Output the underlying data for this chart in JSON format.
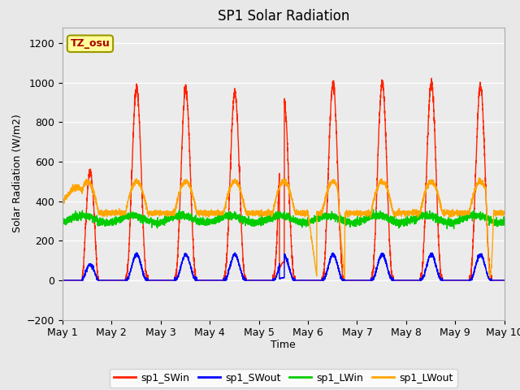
{
  "title": "SP1 Solar Radiation",
  "ylabel": "Solar Radiation (W/m2)",
  "xlabel": "Time",
  "ylim": [
    -200,
    1280
  ],
  "yticks": [
    -200,
    0,
    200,
    400,
    600,
    800,
    1000,
    1200
  ],
  "xlim_days": 9,
  "xtick_labels": [
    "May 1",
    "May 2",
    "May 3",
    "May 4",
    "May 5",
    "May 6",
    "May 7",
    "May 8",
    "May 9",
    "May 10"
  ],
  "xtick_positions": [
    0,
    1,
    2,
    3,
    4,
    5,
    6,
    7,
    8,
    9
  ],
  "fig_bg": "#e8e8e8",
  "ax_bg": "#e8e8e8",
  "colors": {
    "SWin": "#ff2200",
    "SWout": "#0000ff",
    "LWin": "#00cc00",
    "LWout": "#ffa500"
  },
  "linewidth": 1.0,
  "annotation_text": "TZ_osu",
  "annotation_fg": "#aa0000",
  "annotation_bg": "#ffff99",
  "annotation_border": "#999900",
  "legend_labels": [
    "sp1_SWin",
    "sp1_SWout",
    "sp1_LWin",
    "sp1_LWout"
  ]
}
